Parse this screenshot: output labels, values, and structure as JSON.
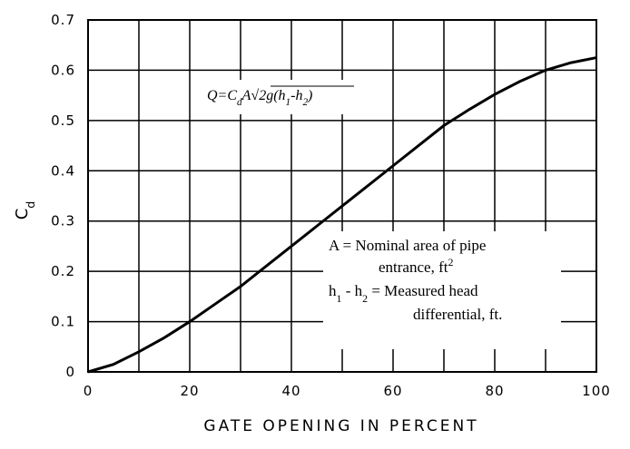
{
  "chart_data": {
    "type": "line",
    "x": [
      0,
      5,
      10,
      15,
      20,
      25,
      30,
      35,
      40,
      45,
      50,
      55,
      60,
      65,
      70,
      75,
      80,
      85,
      90,
      95,
      100
    ],
    "values": [
      0,
      0.015,
      0.04,
      0.068,
      0.1,
      0.135,
      0.17,
      0.21,
      0.25,
      0.29,
      0.33,
      0.37,
      0.41,
      0.45,
      0.49,
      0.522,
      0.552,
      0.578,
      0.6,
      0.615,
      0.625
    ],
    "color": "#000000",
    "xlim": [
      0,
      100
    ],
    "xticks": [
      0,
      20,
      40,
      60,
      80,
      100
    ],
    "xminor": [
      10,
      30,
      50,
      70,
      90
    ],
    "ylim": [
      0,
      0.7
    ],
    "yticks": [
      0,
      0.1,
      0.2,
      0.3,
      0.4,
      0.5,
      0.6,
      0.7
    ],
    "grid": true,
    "x_label": "GATE OPENING IN PERCENT",
    "y_label": [
      {
        "text": "C"
      },
      {
        "text": "d",
        "shift": "sub"
      }
    ],
    "annotations": [
      [
        {
          "text": "Q=C"
        },
        {
          "text": "d",
          "shift": "sub"
        },
        {
          "text": "A√"
        },
        {
          "text": "2g(h"
        },
        {
          "text": "1",
          "shift": "sub"
        },
        {
          "text": "-h"
        },
        {
          "text": "2",
          "shift": "sub"
        },
        {
          "text": ")"
        }
      ],
      [
        {
          "text": "A = Nominal area of pipe"
        }
      ],
      [
        {
          "text": "entrance,  ft"
        },
        {
          "text": "2",
          "shift": "super"
        }
      ],
      [
        {
          "text": "h"
        },
        {
          "text": "1",
          "shift": "sub"
        },
        {
          "text": " - h"
        },
        {
          "text": "2",
          "shift": "sub"
        },
        {
          "text": " = Measured  head"
        }
      ],
      [
        {
          "text": "differential, ft."
        }
      ]
    ]
  }
}
